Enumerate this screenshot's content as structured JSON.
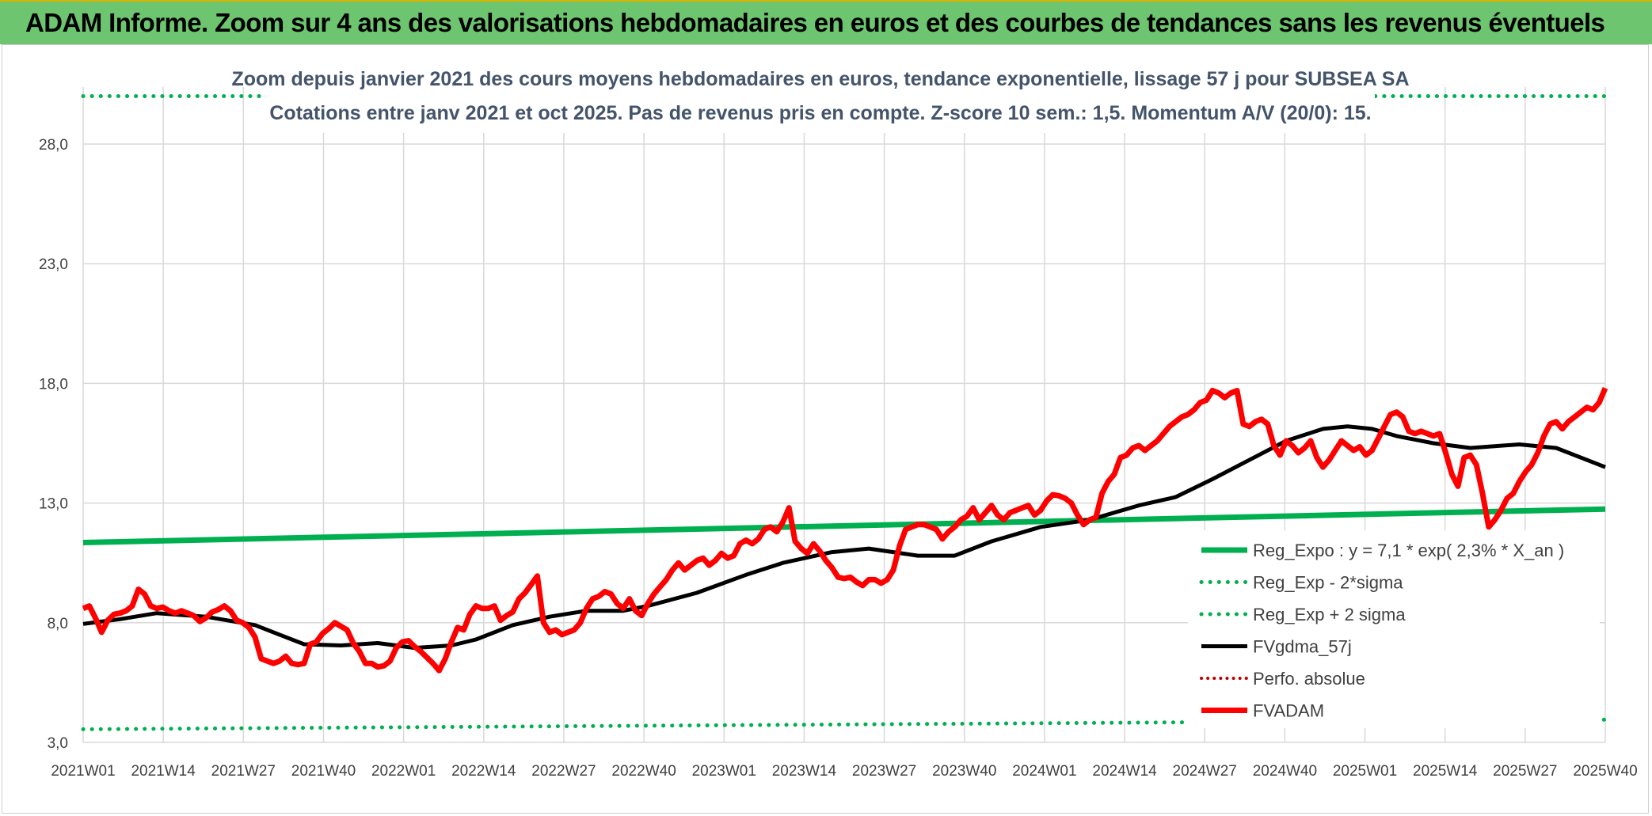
{
  "banner": {
    "title": "ADAM Informe. Zoom sur 4 ans des valorisations hebdomadaires en euros et des courbes de tendances sans les revenus éventuels"
  },
  "colors": {
    "banner": "#6dc56f",
    "trend": "#00b050",
    "price": "#ff0000",
    "smooth": "#000000",
    "perf": "#c00000",
    "grid": "#d9d9d9",
    "subtitle": "#44546a"
  },
  "chart_data": {
    "type": "line",
    "subtitle_line1": "Zoom depuis janvier 2021 des cours moyens hebdomadaires en euros, tendance exponentielle, lissage 57 j pour SUBSEA SA",
    "subtitle_line2": "Cotations entre janv 2021 et oct 2025. Pas de revenus pris en compte. Z-score 10 sem.: 1,5. Momentum A/V (20/0): 15.",
    "x_tick_labels": [
      "2021W01",
      "2021W14",
      "2021W27",
      "2021W40",
      "2022W01",
      "2022W14",
      "2022W27",
      "2022W40",
      "2023W01",
      "2023W14",
      "2023W27",
      "2023W40",
      "2024W01",
      "2024W14",
      "2024W27",
      "2024W40",
      "2025W01",
      "2025W14",
      "2025W27",
      "2025W40"
    ],
    "x_range_weeks": [
      0,
      248
    ],
    "y_tick_labels": [
      "3,0",
      "8,0",
      "13,0",
      "18,0",
      "23,0",
      "28,0"
    ],
    "ylim": [
      3,
      28
    ],
    "grid": true,
    "legend_position": "bottom-right",
    "series": [
      {
        "name": "Reg_Expo : y = 7,1 * exp( 2,3% *  X_an )",
        "style": "solid",
        "points": [
          [
            0,
            11.35
          ],
          [
            248,
            12.75
          ]
        ]
      },
      {
        "name": "Reg_Exp - 2*sigma",
        "style": "dotted",
        "points": [
          [
            0,
            3.55
          ],
          [
            248,
            3.95
          ]
        ]
      },
      {
        "name": "Reg_Exp + 2 sigma",
        "style": "dotted",
        "points": [
          [
            0,
            30.0
          ],
          [
            248,
            30.0
          ]
        ]
      },
      {
        "name": "FVgdma_57j",
        "style": "solid",
        "points": [
          [
            0,
            7.95
          ],
          [
            6,
            8.15
          ],
          [
            12,
            8.4
          ],
          [
            20,
            8.25
          ],
          [
            28,
            7.9
          ],
          [
            32,
            7.5
          ],
          [
            36,
            7.1
          ],
          [
            42,
            7.05
          ],
          [
            48,
            7.15
          ],
          [
            54,
            6.95
          ],
          [
            60,
            7.05
          ],
          [
            64,
            7.3
          ],
          [
            70,
            7.9
          ],
          [
            76,
            8.25
          ],
          [
            82,
            8.5
          ],
          [
            88,
            8.5
          ],
          [
            92,
            8.7
          ],
          [
            100,
            9.25
          ],
          [
            108,
            10.0
          ],
          [
            114,
            10.5
          ],
          [
            122,
            10.95
          ],
          [
            128,
            11.1
          ],
          [
            136,
            10.8
          ],
          [
            142,
            10.8
          ],
          [
            148,
            11.4
          ],
          [
            156,
            12.0
          ],
          [
            164,
            12.3
          ],
          [
            172,
            12.9
          ],
          [
            178,
            13.25
          ],
          [
            184,
            14.0
          ],
          [
            190,
            14.8
          ],
          [
            196,
            15.6
          ],
          [
            202,
            16.1
          ],
          [
            206,
            16.2
          ],
          [
            210,
            16.1
          ],
          [
            214,
            15.8
          ],
          [
            220,
            15.5
          ],
          [
            226,
            15.3
          ],
          [
            234,
            15.45
          ],
          [
            240,
            15.3
          ],
          [
            244,
            14.9
          ],
          [
            248,
            14.5
          ]
        ]
      },
      {
        "name": "Perfo. absolue",
        "style": "dotted",
        "points": []
      },
      {
        "name": "FVADAM",
        "style": "solid",
        "points": [
          [
            0,
            8.6
          ],
          [
            1,
            8.7
          ],
          [
            2,
            8.2
          ],
          [
            3,
            7.6
          ],
          [
            4,
            8.1
          ],
          [
            5,
            8.35
          ],
          [
            6,
            8.4
          ],
          [
            7,
            8.5
          ],
          [
            8,
            8.7
          ],
          [
            9,
            9.4
          ],
          [
            10,
            9.2
          ],
          [
            11,
            8.7
          ],
          [
            12,
            8.6
          ],
          [
            13,
            8.65
          ],
          [
            14,
            8.5
          ],
          [
            15,
            8.4
          ],
          [
            16,
            8.5
          ],
          [
            17,
            8.4
          ],
          [
            18,
            8.3
          ],
          [
            19,
            8.05
          ],
          [
            20,
            8.2
          ],
          [
            21,
            8.45
          ],
          [
            22,
            8.55
          ],
          [
            23,
            8.7
          ],
          [
            24,
            8.5
          ],
          [
            25,
            8.1
          ],
          [
            26,
            8.0
          ],
          [
            27,
            7.8
          ],
          [
            28,
            7.4
          ],
          [
            29,
            6.5
          ],
          [
            30,
            6.4
          ],
          [
            31,
            6.3
          ],
          [
            32,
            6.4
          ],
          [
            33,
            6.6
          ],
          [
            34,
            6.3
          ],
          [
            35,
            6.25
          ],
          [
            36,
            6.3
          ],
          [
            37,
            7.1
          ],
          [
            38,
            7.2
          ],
          [
            39,
            7.55
          ],
          [
            40,
            7.75
          ],
          [
            41,
            8.0
          ],
          [
            42,
            7.85
          ],
          [
            43,
            7.7
          ],
          [
            44,
            7.15
          ],
          [
            45,
            6.8
          ],
          [
            46,
            6.3
          ],
          [
            47,
            6.3
          ],
          [
            48,
            6.15
          ],
          [
            49,
            6.2
          ],
          [
            50,
            6.4
          ],
          [
            51,
            6.95
          ],
          [
            52,
            7.2
          ],
          [
            53,
            7.25
          ],
          [
            54,
            7.0
          ],
          [
            55,
            6.8
          ],
          [
            56,
            6.55
          ],
          [
            57,
            6.3
          ],
          [
            58,
            6.0
          ],
          [
            59,
            6.5
          ],
          [
            60,
            7.2
          ],
          [
            61,
            7.8
          ],
          [
            62,
            7.7
          ],
          [
            63,
            8.35
          ],
          [
            64,
            8.7
          ],
          [
            65,
            8.6
          ],
          [
            66,
            8.6
          ],
          [
            67,
            8.7
          ],
          [
            68,
            8.1
          ],
          [
            69,
            8.3
          ],
          [
            70,
            8.45
          ],
          [
            71,
            9.0
          ],
          [
            72,
            9.25
          ],
          [
            73,
            9.6
          ],
          [
            74,
            9.95
          ],
          [
            75,
            8.0
          ],
          [
            76,
            7.6
          ],
          [
            77,
            7.7
          ],
          [
            78,
            7.5
          ],
          [
            79,
            7.6
          ],
          [
            80,
            7.7
          ],
          [
            81,
            8.0
          ],
          [
            82,
            8.6
          ],
          [
            83,
            9.0
          ],
          [
            84,
            9.1
          ],
          [
            85,
            9.3
          ],
          [
            86,
            9.2
          ],
          [
            87,
            8.8
          ],
          [
            88,
            8.6
          ],
          [
            89,
            9.0
          ],
          [
            90,
            8.5
          ],
          [
            91,
            8.3
          ],
          [
            92,
            8.8
          ],
          [
            93,
            9.2
          ],
          [
            94,
            9.5
          ],
          [
            95,
            9.8
          ],
          [
            96,
            10.2
          ],
          [
            97,
            10.5
          ],
          [
            98,
            10.2
          ],
          [
            99,
            10.4
          ],
          [
            100,
            10.6
          ],
          [
            101,
            10.7
          ],
          [
            102,
            10.4
          ],
          [
            103,
            10.6
          ],
          [
            104,
            10.9
          ],
          [
            105,
            10.7
          ],
          [
            106,
            10.8
          ],
          [
            107,
            11.3
          ],
          [
            108,
            11.45
          ],
          [
            109,
            11.3
          ],
          [
            110,
            11.5
          ],
          [
            111,
            11.9
          ],
          [
            112,
            12.0
          ],
          [
            113,
            11.8
          ],
          [
            114,
            12.2
          ],
          [
            115,
            12.8
          ],
          [
            116,
            11.4
          ],
          [
            117,
            11.1
          ],
          [
            118,
            10.9
          ],
          [
            119,
            11.3
          ],
          [
            120,
            11.0
          ],
          [
            121,
            10.6
          ],
          [
            122,
            10.3
          ],
          [
            123,
            9.9
          ],
          [
            124,
            9.85
          ],
          [
            125,
            9.9
          ],
          [
            126,
            9.7
          ],
          [
            127,
            9.55
          ],
          [
            128,
            9.8
          ],
          [
            129,
            9.8
          ],
          [
            130,
            9.65
          ],
          [
            131,
            9.8
          ],
          [
            132,
            10.2
          ],
          [
            133,
            11.2
          ],
          [
            134,
            11.9
          ],
          [
            135,
            12.0
          ],
          [
            136,
            12.1
          ],
          [
            137,
            12.1
          ],
          [
            138,
            12.0
          ],
          [
            139,
            11.9
          ],
          [
            140,
            11.5
          ],
          [
            141,
            11.8
          ],
          [
            142,
            12.0
          ],
          [
            143,
            12.3
          ],
          [
            144,
            12.45
          ],
          [
            145,
            12.8
          ],
          [
            146,
            12.3
          ],
          [
            147,
            12.6
          ],
          [
            148,
            12.9
          ],
          [
            149,
            12.5
          ],
          [
            150,
            12.3
          ],
          [
            151,
            12.6
          ],
          [
            152,
            12.7
          ],
          [
            153,
            12.8
          ],
          [
            154,
            12.9
          ],
          [
            155,
            12.5
          ],
          [
            156,
            12.7
          ],
          [
            157,
            13.1
          ],
          [
            158,
            13.35
          ],
          [
            159,
            13.3
          ],
          [
            160,
            13.2
          ],
          [
            161,
            13.0
          ],
          [
            162,
            12.5
          ],
          [
            163,
            12.1
          ],
          [
            164,
            12.3
          ],
          [
            165,
            12.4
          ],
          [
            166,
            13.4
          ],
          [
            167,
            13.9
          ],
          [
            168,
            14.2
          ],
          [
            169,
            14.9
          ],
          [
            170,
            15.0
          ],
          [
            171,
            15.3
          ],
          [
            172,
            15.4
          ],
          [
            173,
            15.2
          ],
          [
            174,
            15.4
          ],
          [
            175,
            15.6
          ],
          [
            176,
            15.9
          ],
          [
            177,
            16.2
          ],
          [
            178,
            16.4
          ],
          [
            179,
            16.6
          ],
          [
            180,
            16.7
          ],
          [
            181,
            16.9
          ],
          [
            182,
            17.2
          ],
          [
            183,
            17.3
          ],
          [
            184,
            17.7
          ],
          [
            185,
            17.6
          ],
          [
            186,
            17.4
          ],
          [
            187,
            17.6
          ],
          [
            188,
            17.7
          ],
          [
            189,
            16.3
          ],
          [
            190,
            16.2
          ],
          [
            191,
            16.4
          ],
          [
            192,
            16.5
          ],
          [
            193,
            16.3
          ],
          [
            194,
            15.4
          ],
          [
            195,
            15.0
          ],
          [
            196,
            15.6
          ],
          [
            197,
            15.4
          ],
          [
            198,
            15.1
          ],
          [
            199,
            15.3
          ],
          [
            200,
            15.6
          ],
          [
            201,
            14.9
          ],
          [
            202,
            14.5
          ],
          [
            203,
            14.8
          ],
          [
            204,
            15.2
          ],
          [
            205,
            15.6
          ],
          [
            206,
            15.4
          ],
          [
            207,
            15.2
          ],
          [
            208,
            15.35
          ],
          [
            209,
            15.0
          ],
          [
            210,
            15.2
          ],
          [
            211,
            15.7
          ],
          [
            212,
            16.2
          ],
          [
            213,
            16.7
          ],
          [
            214,
            16.8
          ],
          [
            215,
            16.6
          ],
          [
            216,
            16.0
          ],
          [
            217,
            15.9
          ],
          [
            218,
            16.0
          ],
          [
            219,
            15.9
          ],
          [
            220,
            15.8
          ],
          [
            221,
            15.9
          ],
          [
            222,
            15.1
          ],
          [
            223,
            14.2
          ],
          [
            224,
            13.7
          ],
          [
            225,
            14.9
          ],
          [
            226,
            15.0
          ],
          [
            227,
            14.6
          ],
          [
            228,
            13.4
          ],
          [
            229,
            12.0
          ],
          [
            230,
            12.3
          ],
          [
            231,
            12.7
          ],
          [
            232,
            13.2
          ],
          [
            233,
            13.4
          ],
          [
            234,
            13.9
          ],
          [
            235,
            14.3
          ],
          [
            236,
            14.6
          ],
          [
            237,
            15.1
          ],
          [
            238,
            15.8
          ],
          [
            239,
            16.3
          ],
          [
            240,
            16.4
          ],
          [
            241,
            16.1
          ],
          [
            242,
            16.4
          ],
          [
            243,
            16.6
          ],
          [
            244,
            16.8
          ],
          [
            245,
            17.0
          ],
          [
            246,
            16.9
          ],
          [
            247,
            17.2
          ],
          [
            248,
            17.8
          ]
        ]
      }
    ]
  }
}
